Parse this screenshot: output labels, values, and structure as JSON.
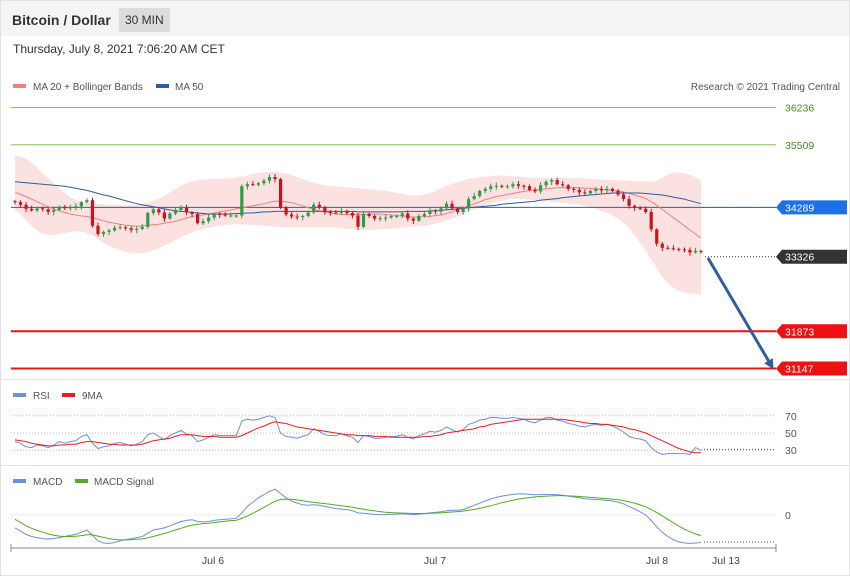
{
  "header": {
    "title": "Bitcoin / Dollar",
    "timeframe": "30 MIN"
  },
  "date_text": "Thursday, July 8, 2021 7:06:20 AM CET",
  "legend": {
    "ma20": "MA 20 + Bollinger Bands",
    "ma50": "MA 50"
  },
  "copyright": "Research © 2021 Trading Central",
  "rsi_legend": {
    "rsi": "RSI",
    "ma": "9MA"
  },
  "macd_legend": {
    "macd": "MACD",
    "signal": "MACD Signal"
  },
  "colors": {
    "up": "#2e9b47",
    "down": "#c8141e",
    "ma50": "#2f5d9e",
    "ma20": "#f08080",
    "band": "#fcdcdc",
    "resistance": "#8cc063",
    "support": "#ee1111",
    "current": "#333333",
    "arrow": "#2f5d9e",
    "rsi": "#6f8fdc",
    "rsi_ma": "#e61e1e",
    "macd": "#6f8fdc",
    "macd_signal": "#55aa22"
  },
  "chart_data": [
    {
      "type": "candlestick",
      "name": "price",
      "x_labels": [
        "Jul 6",
        "Jul 7",
        "Jul 8",
        "Jul 13"
      ],
      "levels": [
        {
          "value": 36236,
          "label": "36236",
          "kind": "resistance"
        },
        {
          "value": 35509,
          "label": "35509",
          "kind": "resistance"
        },
        {
          "value": 34289,
          "label": "34289",
          "kind": "ma50"
        },
        {
          "value": 33326,
          "label": "33326",
          "kind": "current"
        },
        {
          "value": 31873,
          "label": "31873",
          "kind": "support"
        },
        {
          "value": 31147,
          "label": "31147",
          "kind": "support"
        }
      ],
      "close": [
        34380,
        34330,
        34250,
        34220,
        34260,
        34240,
        34190,
        34230,
        34290,
        34260,
        34280,
        34300,
        34380,
        34420,
        33920,
        33760,
        33800,
        33830,
        33880,
        33890,
        33870,
        33840,
        33860,
        33900,
        34170,
        34240,
        34180,
        34060,
        34160,
        34230,
        34270,
        34180,
        34150,
        33970,
        34010,
        34080,
        34150,
        34140,
        34120,
        34120,
        34120,
        34690,
        34730,
        34720,
        34750,
        34800,
        34870,
        34830,
        34270,
        34140,
        34100,
        34090,
        34110,
        34180,
        34330,
        34280,
        34190,
        34180,
        34170,
        34210,
        34170,
        34120,
        33900,
        34150,
        34110,
        34060,
        34070,
        34080,
        34110,
        34110,
        34160,
        34060,
        34020,
        34110,
        34150,
        34220,
        34200,
        34260,
        34350,
        34260,
        34190,
        34260,
        34440,
        34500,
        34600,
        34640,
        34690,
        34700,
        34680,
        34690,
        34730,
        34700,
        34690,
        34620,
        34590,
        34710,
        34780,
        34810,
        34730,
        34710,
        34640,
        34620,
        34570,
        34550,
        34600,
        34640,
        34610,
        34640,
        34600,
        34530,
        34440,
        34310,
        34270,
        34250,
        34190,
        33850,
        33570,
        33490,
        33480,
        33470,
        33460,
        33450,
        33400,
        33430,
        33410
      ],
      "ma20": [
        34580,
        34530,
        34490,
        34440,
        34390,
        34340,
        34290,
        34250,
        34210,
        34180,
        34150,
        34130,
        34110,
        34100,
        34080,
        34050,
        34020,
        33990,
        33970,
        33950,
        33930,
        33920,
        33910,
        33920,
        33930,
        33940,
        33950,
        33970,
        33990,
        34010,
        34040,
        34070,
        34100,
        34120,
        34130,
        34150,
        34170,
        34190,
        34210,
        34230,
        34250,
        34270,
        34290,
        34310,
        34330,
        34350,
        34380,
        34400,
        34400,
        34390,
        34370,
        34340,
        34310,
        34270,
        34240,
        34210,
        34190,
        34170,
        34150,
        34140,
        34140,
        34140,
        34140,
        34140,
        34150,
        34150,
        34150,
        34140,
        34130,
        34120,
        34110,
        34100,
        34090,
        34090,
        34100,
        34100,
        34120,
        34130,
        34160,
        34190,
        34230,
        34270,
        34310,
        34350,
        34390,
        34430,
        34460,
        34490,
        34510,
        34530,
        34550,
        34570,
        34590,
        34610,
        34620,
        34630,
        34640,
        34650,
        34660,
        34660,
        34660,
        34660,
        34660,
        34650,
        34650,
        34640,
        34630,
        34620,
        34610,
        34600,
        34580,
        34550,
        34520,
        34490,
        34450,
        34390,
        34320,
        34240,
        34160,
        34080,
        34000,
        33920,
        33840,
        33760,
        33680
      ],
      "ma50": [
        34780,
        34770,
        34760,
        34750,
        34740,
        34730,
        34720,
        34710,
        34700,
        34690,
        34670,
        34650,
        34630,
        34610,
        34580,
        34550,
        34520,
        34500,
        34470,
        34440,
        34410,
        34380,
        34350,
        34330,
        34310,
        34290,
        34270,
        34250,
        34230,
        34210,
        34200,
        34190,
        34180,
        34170,
        34160,
        34150,
        34150,
        34150,
        34150,
        34150,
        34160,
        34160,
        34170,
        34170,
        34180,
        34190,
        34190,
        34200,
        34200,
        34200,
        34200,
        34200,
        34200,
        34200,
        34200,
        34200,
        34200,
        34200,
        34200,
        34200,
        34200,
        34200,
        34190,
        34190,
        34190,
        34190,
        34190,
        34190,
        34190,
        34190,
        34190,
        34200,
        34200,
        34200,
        34200,
        34210,
        34210,
        34220,
        34230,
        34240,
        34250,
        34260,
        34270,
        34280,
        34290,
        34300,
        34310,
        34320,
        34340,
        34350,
        34360,
        34370,
        34380,
        34390,
        34400,
        34420,
        34430,
        34440,
        34450,
        34470,
        34480,
        34490,
        34500,
        34510,
        34520,
        34530,
        34540,
        34550,
        34560,
        34560,
        34560,
        34560,
        34560,
        34560,
        34550,
        34540,
        34530,
        34520,
        34500,
        34480,
        34460,
        34440,
        34410,
        34380,
        34350
      ],
      "band_upper": [
        35290,
        35270,
        35230,
        35150,
        35050,
        34950,
        34850,
        34750,
        34650,
        34560,
        34480,
        34420,
        34380,
        34370,
        34360,
        34350,
        34340,
        34330,
        34330,
        34320,
        34320,
        34320,
        34330,
        34340,
        34370,
        34410,
        34450,
        34510,
        34570,
        34640,
        34700,
        34750,
        34790,
        34810,
        34820,
        34830,
        34840,
        34840,
        34850,
        34850,
        34860,
        34880,
        34900,
        34930,
        34950,
        34960,
        34970,
        34970,
        34960,
        34940,
        34910,
        34870,
        34830,
        34790,
        34760,
        34730,
        34710,
        34700,
        34690,
        34680,
        34670,
        34660,
        34650,
        34640,
        34630,
        34620,
        34610,
        34600,
        34580,
        34560,
        34540,
        34520,
        34510,
        34510,
        34530,
        34560,
        34600,
        34650,
        34700,
        34740,
        34770,
        34800,
        34830,
        34850,
        34870,
        34880,
        34890,
        34900,
        34900,
        34890,
        34880,
        34880,
        34870,
        34860,
        34860,
        34860,
        34850,
        34850,
        34850,
        34850,
        34850,
        34850,
        34850,
        34840,
        34830,
        34830,
        34820,
        34820,
        34810,
        34810,
        34800,
        34800,
        34790,
        34790,
        34790,
        34780,
        34800,
        34860,
        34920,
        34960,
        34960,
        34950,
        34920,
        34870,
        34800
      ],
      "band_lower": [
        34240,
        34140,
        34030,
        33920,
        33830,
        33770,
        33740,
        33740,
        33760,
        33780,
        33800,
        33810,
        33810,
        33780,
        33730,
        33660,
        33590,
        33530,
        33480,
        33440,
        33410,
        33390,
        33380,
        33390,
        33410,
        33440,
        33480,
        33530,
        33580,
        33640,
        33700,
        33750,
        33790,
        33830,
        33860,
        33880,
        33900,
        33920,
        33930,
        33940,
        33950,
        33950,
        33940,
        33940,
        33930,
        33920,
        33910,
        33900,
        33890,
        33890,
        33890,
        33890,
        33890,
        33890,
        33890,
        33890,
        33890,
        33890,
        33880,
        33870,
        33860,
        33850,
        33840,
        33840,
        33840,
        33840,
        33850,
        33860,
        33860,
        33870,
        33880,
        33890,
        33900,
        33910,
        33920,
        33940,
        33960,
        33990,
        34020,
        34060,
        34100,
        34150,
        34200,
        34240,
        34280,
        34320,
        34360,
        34390,
        34410,
        34430,
        34440,
        34440,
        34440,
        34430,
        34420,
        34410,
        34400,
        34390,
        34380,
        34370,
        34360,
        34350,
        34330,
        34310,
        34280,
        34250,
        34210,
        34170,
        34120,
        34060,
        33980,
        33870,
        33740,
        33590,
        33430,
        33260,
        33090,
        32920,
        32800,
        32710,
        32650,
        32620,
        32600,
        32590,
        32580
      ]
    },
    {
      "type": "line",
      "name": "RSI",
      "levels": [
        70,
        50,
        30
      ],
      "series": [
        {
          "name": "RSI",
          "values": [
            40,
            38,
            34,
            33,
            36,
            35,
            33,
            36,
            40,
            38,
            40,
            41,
            46,
            48,
            38,
            32,
            34,
            35,
            38,
            39,
            37,
            35,
            37,
            40,
            48,
            50,
            46,
            42,
            47,
            50,
            53,
            49,
            47,
            40,
            42,
            45,
            48,
            47,
            47,
            47,
            47,
            64,
            66,
            65,
            66,
            68,
            70,
            68,
            50,
            46,
            45,
            44,
            46,
            48,
            55,
            52,
            48,
            47,
            47,
            49,
            47,
            45,
            39,
            47,
            46,
            44,
            44,
            45,
            46,
            46,
            48,
            45,
            43,
            47,
            49,
            52,
            51,
            53,
            57,
            54,
            51,
            54,
            60,
            62,
            65,
            66,
            68,
            68,
            67,
            67,
            68,
            67,
            66,
            63,
            62,
            65,
            68,
            68,
            65,
            64,
            61,
            60,
            58,
            57,
            59,
            60,
            59,
            60,
            58,
            55,
            51,
            46,
            44,
            43,
            41,
            33,
            28,
            25,
            26,
            26,
            26,
            26,
            25,
            33,
            30
          ]
        },
        {
          "name": "9MA",
          "values": [
            42,
            41,
            40,
            38,
            37,
            36,
            35,
            35,
            36,
            36,
            37,
            37,
            39,
            40,
            40,
            39,
            38,
            37,
            37,
            36,
            36,
            36,
            36,
            37,
            39,
            41,
            42,
            43,
            44,
            46,
            48,
            48,
            48,
            47,
            46,
            46,
            46,
            45,
            45,
            45,
            45,
            47,
            50,
            53,
            56,
            58,
            61,
            63,
            62,
            61,
            59,
            57,
            56,
            55,
            54,
            53,
            52,
            51,
            50,
            49,
            48,
            48,
            47,
            47,
            47,
            46,
            46,
            46,
            45,
            45,
            45,
            45,
            45,
            45,
            46,
            46,
            47,
            48,
            50,
            51,
            52,
            53,
            54,
            55,
            57,
            58,
            60,
            61,
            62,
            63,
            64,
            65,
            66,
            66,
            66,
            66,
            66,
            66,
            66,
            66,
            65,
            64,
            63,
            62,
            61,
            61,
            60,
            60,
            59,
            58,
            57,
            55,
            54,
            52,
            50,
            47,
            44,
            41,
            38,
            35,
            32,
            30,
            28,
            27,
            27
          ]
        }
      ]
    },
    {
      "type": "line",
      "name": "MACD",
      "levels": [
        0
      ],
      "y_tick_labels": [
        "0"
      ],
      "series": [
        {
          "name": "MACD",
          "values": [
            -60,
            -75,
            -90,
            -100,
            -105,
            -110,
            -112,
            -110,
            -105,
            -100,
            -95,
            -90,
            -80,
            -70,
            -95,
            -120,
            -130,
            -132,
            -128,
            -120,
            -115,
            -110,
            -105,
            -100,
            -85,
            -70,
            -65,
            -60,
            -50,
            -40,
            -30,
            -25,
            -22,
            -30,
            -32,
            -30,
            -25,
            -22,
            -20,
            -18,
            -15,
            10,
            40,
            60,
            80,
            95,
            110,
            120,
            100,
            80,
            65,
            55,
            48,
            45,
            48,
            45,
            40,
            35,
            30,
            28,
            25,
            20,
            10,
            8,
            5,
            3,
            2,
            2,
            3,
            4,
            6,
            4,
            2,
            4,
            6,
            10,
            12,
            15,
            20,
            22,
            22,
            25,
            35,
            45,
            55,
            65,
            75,
            82,
            88,
            92,
            96,
            98,
            98,
            96,
            94,
            95,
            96,
            96,
            94,
            92,
            88,
            84,
            80,
            76,
            74,
            72,
            70,
            68,
            65,
            60,
            52,
            40,
            28,
            15,
            0,
            -25,
            -55,
            -80,
            -100,
            -115,
            -125,
            -130,
            -132,
            -130,
            -128
          ]
        },
        {
          "name": "MACD Signal",
          "values": [
            -20,
            -35,
            -50,
            -62,
            -72,
            -80,
            -88,
            -94,
            -98,
            -100,
            -100,
            -99,
            -96,
            -92,
            -92,
            -98,
            -104,
            -110,
            -114,
            -116,
            -116,
            -115,
            -113,
            -111,
            -106,
            -100,
            -93,
            -86,
            -78,
            -70,
            -62,
            -54,
            -47,
            -43,
            -40,
            -38,
            -35,
            -32,
            -29,
            -26,
            -24,
            -16,
            -4,
            8,
            22,
            36,
            50,
            64,
            72,
            74,
            73,
            70,
            66,
            62,
            59,
            56,
            53,
            50,
            46,
            43,
            40,
            36,
            31,
            27,
            23,
            19,
            16,
            13,
            11,
            10,
            9,
            8,
            7,
            7,
            7,
            8,
            9,
            10,
            12,
            14,
            16,
            18,
            22,
            26,
            31,
            37,
            43,
            50,
            57,
            63,
            69,
            74,
            78,
            81,
            84,
            86,
            88,
            89,
            90,
            90,
            89,
            88,
            86,
            84,
            82,
            80,
            78,
            76,
            74,
            71,
            67,
            61,
            55,
            47,
            38,
            26,
            12,
            -4,
            -20,
            -36,
            -52,
            -66,
            -78,
            -88,
            -96
          ]
        }
      ]
    }
  ]
}
